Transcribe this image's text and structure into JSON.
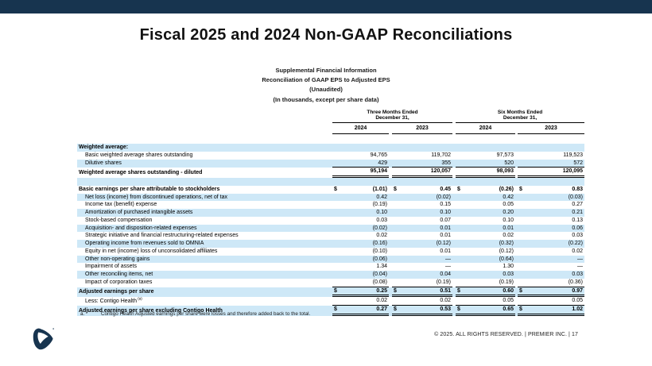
{
  "slide": {
    "title": "Fiscal 2025 and 2024 Non-GAAP Reconciliations",
    "subtitle_lines": [
      "Supplemental Financial Information",
      "Reconciliation of GAAP EPS to Adjusted EPS",
      "(Unaudited)",
      "(In thousands, except per share data)"
    ],
    "footnote": {
      "marker": "a.",
      "text": "Contigo Health Adjusted earnings per share were losses and therefore added back to the total."
    },
    "footer_text": "© 2025. ALL RIGHTS RESERVED.  |  PREMIER INC.  |  17"
  },
  "colors": {
    "top_bar": "#17344f",
    "row_stripe": "#cee8f7",
    "logo_navy": "#17344f"
  },
  "table": {
    "col_groups": [
      {
        "line1": "Three Months Ended",
        "line2": "December 31,",
        "years": [
          "2024",
          "2023"
        ]
      },
      {
        "line1": "Six Months Ended",
        "line2": "December 31,",
        "years": [
          "2024",
          "2023"
        ]
      }
    ],
    "rows": [
      {
        "label": "Weighted average:",
        "bold": true,
        "values": [
          "",
          "",
          "",
          ""
        ]
      },
      {
        "label": "Basic weighted average shares outstanding",
        "indent": true,
        "values": [
          "94,765",
          "119,702",
          "97,573",
          "119,523"
        ]
      },
      {
        "label": "Dilutive shares",
        "indent": true,
        "underline": "single",
        "values": [
          "429",
          "355",
          "520",
          "572"
        ]
      },
      {
        "label": "Weighted average shares outstanding - diluted",
        "bold": true,
        "underline": "double",
        "values": [
          "95,194",
          "120,057",
          "98,093",
          "120,095"
        ]
      },
      {
        "label": "",
        "values": [
          "",
          "",
          "",
          ""
        ]
      },
      {
        "label": "Basic earnings per share attributable to stockholders",
        "bold": true,
        "dollar": true,
        "values": [
          "(1.01)",
          "0.45",
          "(0.26)",
          "0.83"
        ]
      },
      {
        "label": "Net loss (income) from discontinued operations, net of tax",
        "indent": true,
        "values": [
          "0.42",
          "(0.02)",
          "0.42",
          "(0.03)"
        ]
      },
      {
        "label": "Income tax (benefit) expense",
        "indent": true,
        "values": [
          "(0.19)",
          "0.15",
          "0.05",
          "0.27"
        ]
      },
      {
        "label": "Amortization of purchased intangible assets",
        "indent": true,
        "values": [
          "0.10",
          "0.10",
          "0.20",
          "0.21"
        ]
      },
      {
        "label": "Stock-based compensation",
        "indent": true,
        "values": [
          "0.03",
          "0.07",
          "0.10",
          "0.13"
        ]
      },
      {
        "label": "Acquisition- and disposition-related expenses",
        "indent": true,
        "values": [
          "(0.02)",
          "0.01",
          "0.01",
          "0.06"
        ]
      },
      {
        "label": "Strategic initiative and financial restructuring-related expenses",
        "indent": true,
        "values": [
          "0.02",
          "0.01",
          "0.02",
          "0.03"
        ]
      },
      {
        "label": "Operating income from revenues sold to OMNIA",
        "indent": true,
        "values": [
          "(0.16)",
          "(0.12)",
          "(0.32)",
          "(0.22)"
        ]
      },
      {
        "label": "Equity in net (income) loss of unconsolidated affiliates",
        "indent": true,
        "values": [
          "(0.10)",
          "0.01",
          "(0.12)",
          "0.02"
        ]
      },
      {
        "label": "Other non-operating gains",
        "indent": true,
        "values": [
          "(0.06)",
          "—",
          "(0.64)",
          "—"
        ]
      },
      {
        "label": "Impairment of assets",
        "indent": true,
        "values": [
          "1.34",
          "—",
          "1.30",
          "—"
        ]
      },
      {
        "label": "Other reconciling items, net",
        "indent": true,
        "values": [
          "(0.04)",
          "0.04",
          "0.03",
          "0.03"
        ]
      },
      {
        "label": "Impact of corporation taxes",
        "indent": true,
        "underline": "single",
        "values": [
          "(0.08)",
          "(0.19)",
          "(0.19)",
          "(0.36)"
        ]
      },
      {
        "label": "Adjusted earnings per share",
        "bold": true,
        "dollar": true,
        "underline": "double",
        "values": [
          "0.25",
          "0.51",
          "0.60",
          "0.97"
        ]
      },
      {
        "label": "Less: Contigo Health",
        "sup": "(a)",
        "indent": true,
        "underline": "single",
        "values": [
          "0.02",
          "0.02",
          "0.05",
          "0.05"
        ]
      },
      {
        "label": "Adjusted earnings per share excluding Contigo Health",
        "bold": true,
        "dollar": true,
        "underline": "double",
        "values": [
          "0.27",
          "0.53",
          "0.65",
          "1.02"
        ]
      }
    ]
  }
}
